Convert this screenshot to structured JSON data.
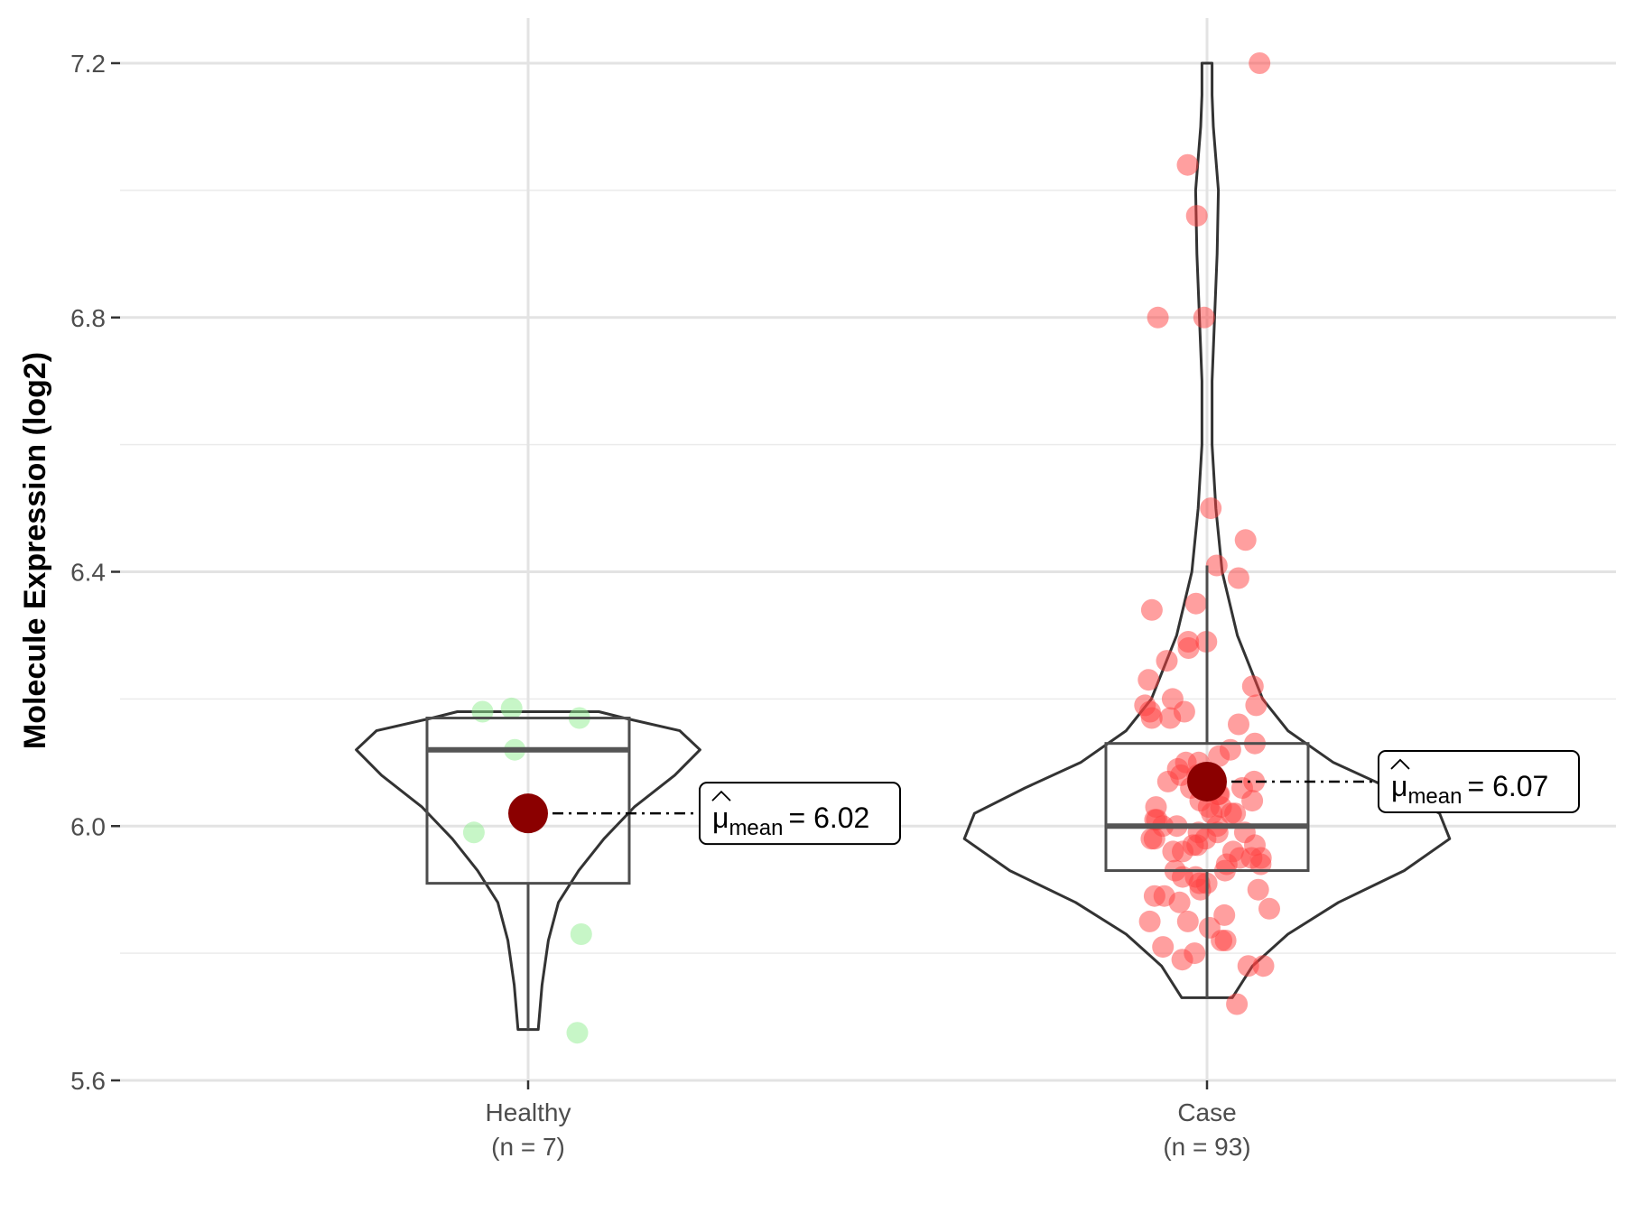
{
  "chart_data": {
    "type": "violin",
    "ylabel": "Molecule Expression (log2)",
    "xlabel": "",
    "ylim": [
      5.6,
      7.2
    ],
    "yticks": [
      5.6,
      6.0,
      6.4,
      6.8,
      7.2
    ],
    "ytick_labels": [
      "5.6",
      "6.0",
      "6.4",
      "6.8",
      "7.2"
    ],
    "grid": true,
    "groups": [
      {
        "label": "Healthy",
        "n_label": "(n = 7)",
        "color": "#90EE90",
        "box": {
          "q1": 5.91,
          "median": 6.12,
          "q3": 6.17,
          "whisker_low": 5.68,
          "whisker_high": 6.17
        },
        "mean": 6.02,
        "mean_label_main": "μ",
        "mean_label_sub": "mean",
        "mean_label_value": "= 6.02",
        "violin_range": [
          5.68,
          6.18
        ],
        "violin_profile": [
          [
            5.68,
            0.04
          ],
          [
            5.75,
            0.055
          ],
          [
            5.82,
            0.08
          ],
          [
            5.88,
            0.12
          ],
          [
            5.93,
            0.2
          ],
          [
            5.98,
            0.3
          ],
          [
            6.03,
            0.42
          ],
          [
            6.08,
            0.58
          ],
          [
            6.12,
            0.68
          ],
          [
            6.15,
            0.6
          ],
          [
            6.17,
            0.38
          ],
          [
            6.18,
            0.28
          ]
        ],
        "points": [
          5.675,
          5.83,
          5.99,
          6.12,
          6.17,
          6.18,
          6.185
        ]
      },
      {
        "label": "Case",
        "n_label": "(n = 93)",
        "color": "#FF4040",
        "box": {
          "q1": 5.93,
          "median": 6.0,
          "q3": 6.13,
          "whisker_low": 5.73,
          "whisker_high": 6.41
        },
        "mean": 6.07,
        "mean_label_main": "μ",
        "mean_label_sub": "mean",
        "mean_label_value": "= 6.07",
        "violin_range": [
          5.73,
          7.2
        ],
        "violin_profile": [
          [
            5.73,
            0.1
          ],
          [
            5.78,
            0.18
          ],
          [
            5.83,
            0.32
          ],
          [
            5.88,
            0.52
          ],
          [
            5.93,
            0.78
          ],
          [
            5.98,
            0.96
          ],
          [
            6.02,
            0.92
          ],
          [
            6.06,
            0.72
          ],
          [
            6.1,
            0.5
          ],
          [
            6.15,
            0.32
          ],
          [
            6.2,
            0.22
          ],
          [
            6.3,
            0.12
          ],
          [
            6.4,
            0.06
          ],
          [
            6.5,
            0.035
          ],
          [
            6.6,
            0.02
          ],
          [
            6.7,
            0.02
          ],
          [
            6.8,
            0.03
          ],
          [
            6.9,
            0.04
          ],
          [
            7.0,
            0.045
          ],
          [
            7.05,
            0.035
          ],
          [
            7.1,
            0.025
          ],
          [
            7.15,
            0.02
          ],
          [
            7.2,
            0.02
          ]
        ],
        "points": [
          7.2,
          7.04,
          6.96,
          6.8,
          6.8,
          6.5,
          6.45,
          6.41,
          6.39,
          6.35,
          6.34,
          6.29,
          6.29,
          6.28,
          6.26,
          6.23,
          6.22,
          6.2,
          6.19,
          6.19,
          6.18,
          6.18,
          6.17,
          6.17,
          6.16,
          6.13,
          6.12,
          6.11,
          6.1,
          6.1,
          6.09,
          6.08,
          6.08,
          6.07,
          6.07,
          6.06,
          6.06,
          6.05,
          6.05,
          6.04,
          6.04,
          6.03,
          6.03,
          6.03,
          6.02,
          6.02,
          6.02,
          6.01,
          6.01,
          6.0,
          6.0,
          6.0,
          5.99,
          5.99,
          5.99,
          5.98,
          5.98,
          5.98,
          5.97,
          5.97,
          5.97,
          5.96,
          5.96,
          5.96,
          5.95,
          5.95,
          5.95,
          5.94,
          5.94,
          5.93,
          5.93,
          5.92,
          5.92,
          5.91,
          5.91,
          5.9,
          5.9,
          5.89,
          5.89,
          5.88,
          5.87,
          5.86,
          5.85,
          5.85,
          5.84,
          5.82,
          5.82,
          5.81,
          5.8,
          5.79,
          5.78,
          5.78,
          5.72
        ]
      }
    ]
  }
}
